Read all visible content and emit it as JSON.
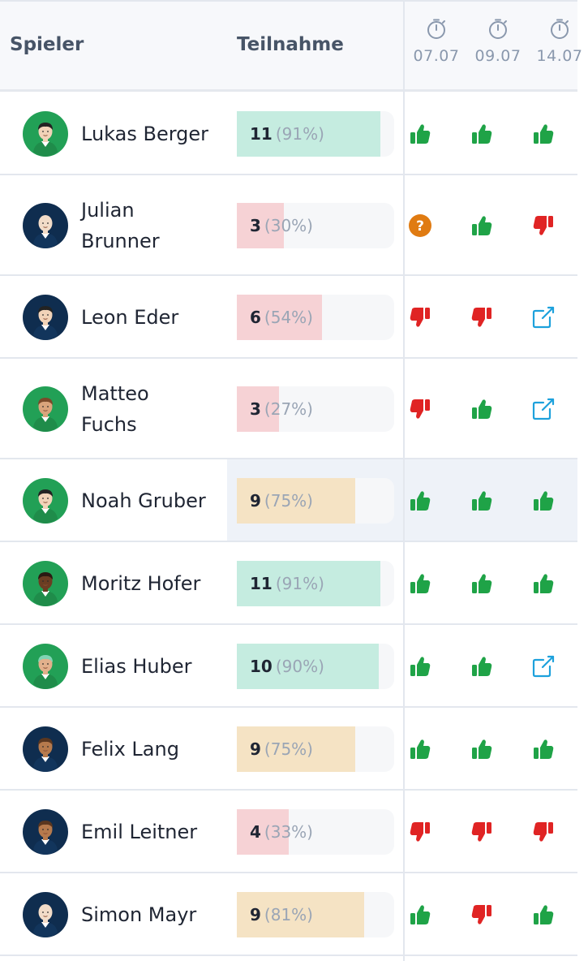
{
  "header": {
    "col_player": "Spieler",
    "col_participation": "Teilnahme",
    "dates": [
      "07.07",
      "09.07",
      "14.07"
    ]
  },
  "colors": {
    "up": "#1fa347",
    "down": "#e02424",
    "question": "#e07b12",
    "link": "#1da1dc",
    "bar_green": "#c5ece0",
    "bar_red": "#f6d2d5",
    "bar_amber": "#f5e3c4"
  },
  "players": [
    {
      "name": "Lukas Berger",
      "count": "11",
      "percent_label": "(91%)",
      "fill": 0.91,
      "level": "green",
      "avatar": "green-shirt-dark-hair",
      "votes": [
        "thumbs-up-icon",
        "thumbs-up-icon",
        "thumbs-up-icon"
      ]
    },
    {
      "name": "Julian Brunner",
      "count": "3",
      "percent_label": "(30%)",
      "fill": 0.3,
      "level": "red",
      "avatar": "navy-shirt-bald",
      "votes": [
        "question-icon",
        "thumbs-up-icon",
        "thumbs-down-icon"
      ]
    },
    {
      "name": "Leon Eder",
      "count": "6",
      "percent_label": "(54%)",
      "fill": 0.54,
      "level": "red",
      "avatar": "navy-shirt-dark-hair",
      "votes": [
        "thumbs-down-icon",
        "thumbs-down-icon",
        "external-link-icon"
      ]
    },
    {
      "name": "Matteo Fuchs",
      "count": "3",
      "percent_label": "(27%)",
      "fill": 0.27,
      "level": "red",
      "avatar": "green-shirt-brown-hair",
      "votes": [
        "thumbs-down-icon",
        "thumbs-up-icon",
        "external-link-icon"
      ]
    },
    {
      "name": "Noah Gruber",
      "count": "9",
      "percent_label": "(75%)",
      "fill": 0.75,
      "level": "amber",
      "avatar": "green-shirt-dark-hair",
      "votes": [
        "thumbs-up-icon",
        "thumbs-up-icon",
        "thumbs-up-icon"
      ]
    },
    {
      "name": "Moritz Hofer",
      "count": "11",
      "percent_label": "(91%)",
      "fill": 0.91,
      "level": "green",
      "avatar": "green-shirt-dark-skin",
      "votes": [
        "thumbs-up-icon",
        "thumbs-up-icon",
        "thumbs-up-icon"
      ]
    },
    {
      "name": "Elias Huber",
      "count": "10",
      "percent_label": "(90%)",
      "fill": 0.9,
      "level": "green",
      "avatar": "green-shirt-light-hair",
      "votes": [
        "thumbs-up-icon",
        "thumbs-up-icon",
        "external-link-icon"
      ]
    },
    {
      "name": "Felix Lang",
      "count": "9",
      "percent_label": "(75%)",
      "fill": 0.75,
      "level": "amber",
      "avatar": "navy-shirt-brown-skin",
      "votes": [
        "thumbs-up-icon",
        "thumbs-up-icon",
        "thumbs-up-icon"
      ]
    },
    {
      "name": "Emil Leitner",
      "count": "4",
      "percent_label": "(33%)",
      "fill": 0.33,
      "level": "red",
      "avatar": "navy-shirt-brown-skin",
      "votes": [
        "thumbs-down-icon",
        "thumbs-down-icon",
        "thumbs-down-icon"
      ]
    },
    {
      "name": "Simon Mayr",
      "count": "9",
      "percent_label": "(81%)",
      "fill": 0.81,
      "level": "amber",
      "avatar": "navy-shirt-bald",
      "votes": [
        "thumbs-up-icon",
        "thumbs-down-icon",
        "thumbs-up-icon"
      ]
    }
  ]
}
